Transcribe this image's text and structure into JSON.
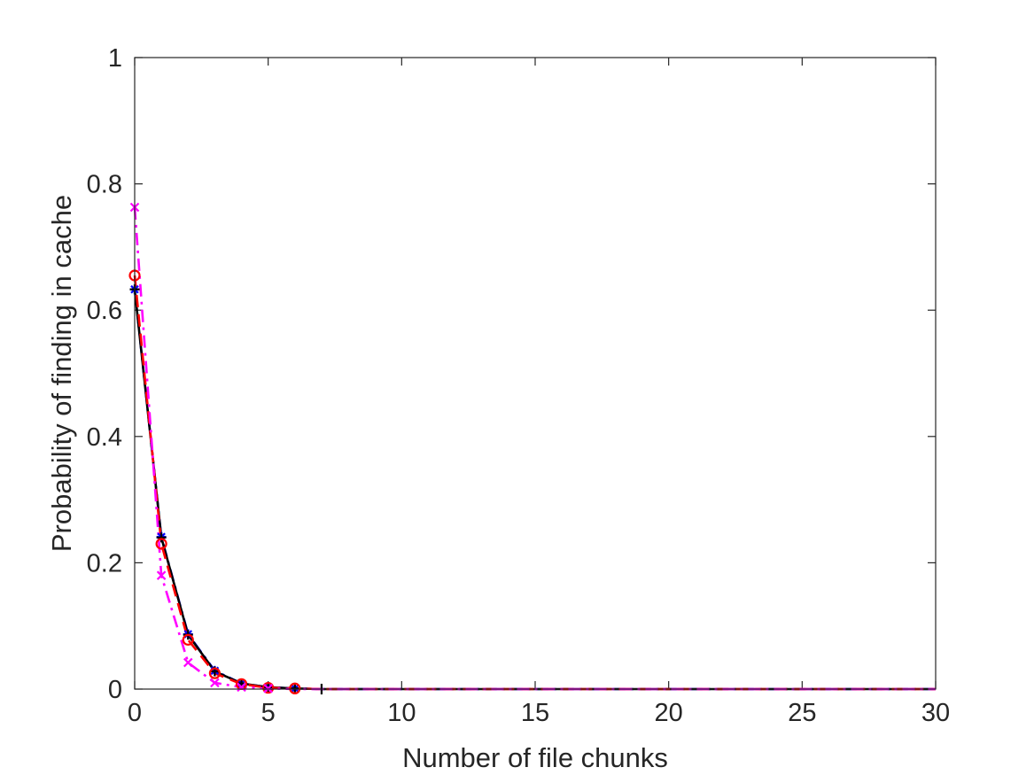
{
  "chart_data": {
    "type": "line",
    "title": "",
    "xlabel": "Number of file chunks",
    "ylabel": "Probability of finding in cache",
    "xlim": [
      0,
      30
    ],
    "ylim": [
      0,
      1
    ],
    "xticks": [
      0,
      5,
      10,
      15,
      20,
      25,
      30
    ],
    "yticks": [
      0,
      0.2,
      0.4,
      0.6,
      0.8,
      1
    ],
    "xtick_labels": [
      "0",
      "5",
      "10",
      "15",
      "20",
      "25",
      "30"
    ],
    "ytick_labels": [
      "0",
      "0.2",
      "0.4",
      "0.6",
      "0.8",
      "1"
    ],
    "grid": false,
    "legend": "none",
    "series": [
      {
        "color": "#0000ff",
        "line_style": "dashdot",
        "marker": "star",
        "x": [
          0,
          1,
          2,
          3,
          4,
          5,
          6,
          7,
          8,
          9,
          10,
          11,
          12,
          13,
          14,
          15,
          16,
          17,
          18,
          19,
          20,
          21,
          22,
          23,
          24,
          25,
          26,
          27,
          28,
          29,
          30
        ],
        "y": [
          0.633,
          0.241,
          0.087,
          0.029,
          0.009,
          0.003,
          0.001,
          0,
          0,
          0,
          0,
          0,
          0,
          0,
          0,
          0,
          0,
          0,
          0,
          0,
          0,
          0,
          0,
          0,
          0,
          0,
          0,
          0,
          0,
          0,
          0
        ]
      },
      {
        "color": "#000000",
        "line_style": "solid",
        "marker": "plus",
        "x": [
          0,
          1,
          2,
          3,
          4,
          5,
          6,
          7,
          8,
          9,
          10,
          11,
          12,
          13,
          14,
          15,
          16,
          17,
          18,
          19,
          20,
          21,
          22,
          23,
          24,
          25,
          26,
          27,
          28,
          29,
          30
        ],
        "y": [
          0.633,
          0.24,
          0.086,
          0.028,
          0.009,
          0.003,
          0.001,
          0,
          0,
          0,
          0,
          0,
          0,
          0,
          0,
          0,
          0,
          0,
          0,
          0,
          0,
          0,
          0,
          0,
          0,
          0,
          0,
          0,
          0,
          0,
          0
        ]
      },
      {
        "color": "#ff0000",
        "line_style": "dashed",
        "marker": "circle",
        "x": [
          0,
          1,
          2,
          3,
          4,
          5,
          6,
          7,
          8,
          9,
          10,
          11,
          12,
          13,
          14,
          15,
          16,
          17,
          18,
          19,
          20,
          21,
          22,
          23,
          24,
          25,
          26,
          27,
          28,
          29,
          30
        ],
        "y": [
          0.655,
          0.23,
          0.078,
          0.025,
          0.008,
          0.002,
          0.001,
          0,
          0,
          0,
          0,
          0,
          0,
          0,
          0,
          0,
          0,
          0,
          0,
          0,
          0,
          0,
          0,
          0,
          0,
          0,
          0,
          0,
          0,
          0,
          0
        ]
      },
      {
        "color": "#ff00ff",
        "line_style": "dashdot",
        "marker": "x",
        "x": [
          0,
          1,
          2,
          3,
          4,
          5,
          6,
          7,
          8,
          9,
          10,
          11,
          12,
          13,
          14,
          15,
          16,
          17,
          18,
          19,
          20,
          21,
          22,
          23,
          24,
          25,
          26,
          27,
          28,
          29,
          30
        ],
        "y": [
          0.763,
          0.18,
          0.042,
          0.01,
          0.003,
          0.001,
          0,
          0,
          0,
          0,
          0,
          0,
          0,
          0,
          0,
          0,
          0,
          0,
          0,
          0,
          0,
          0,
          0,
          0,
          0,
          0,
          0,
          0,
          0,
          0,
          0
        ]
      }
    ]
  }
}
